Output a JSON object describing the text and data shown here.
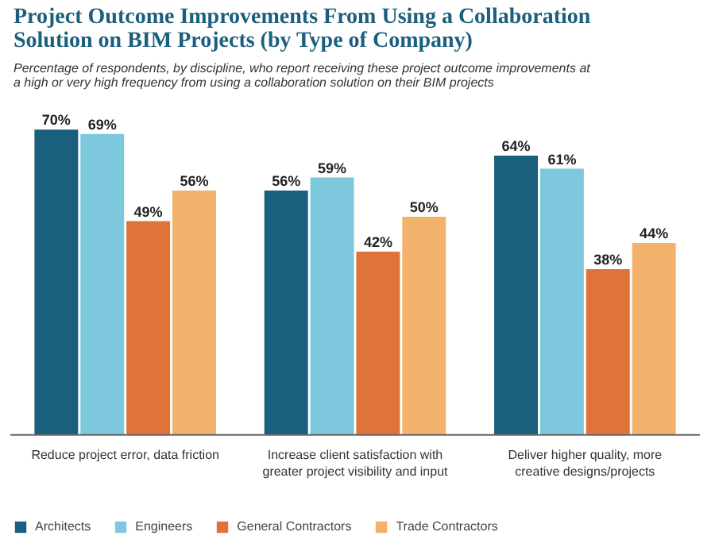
{
  "chart_data": {
    "type": "bar",
    "title": "Project Outcome Improvements From Using a Collaboration Solution on BIM Projects (by Type of Company)",
    "subtitle": "Percentage of respondents, by discipline, who report receiving these project outcome improvements at a high or very high frequency from using a collaboration solution on their BIM projects",
    "categories": [
      "Reduce project error, data friction",
      "Increase client satisfaction with greater project visibility and input",
      "Deliver higher quality, more creative designs/projects"
    ],
    "series": [
      {
        "name": "Architects",
        "color": "#1b5f7e",
        "values": [
          70,
          56,
          64
        ],
        "value_labels": [
          "70%",
          "56%",
          "64%"
        ]
      },
      {
        "name": "Engineers",
        "color": "#7dc8dc",
        "values": [
          69,
          59,
          61
        ],
        "value_labels": [
          "69%",
          "59%",
          "61%"
        ]
      },
      {
        "name": "General Contractors",
        "color": "#e0733a",
        "values": [
          49,
          42,
          38
        ],
        "value_labels": [
          "49%",
          "42%",
          "38%"
        ]
      },
      {
        "name": "Trade Contractors",
        "color": "#f2b26b",
        "values": [
          56,
          50,
          44
        ],
        "value_labels": [
          "56%",
          "50%",
          "44%"
        ]
      }
    ],
    "legend": "bottom"
  }
}
